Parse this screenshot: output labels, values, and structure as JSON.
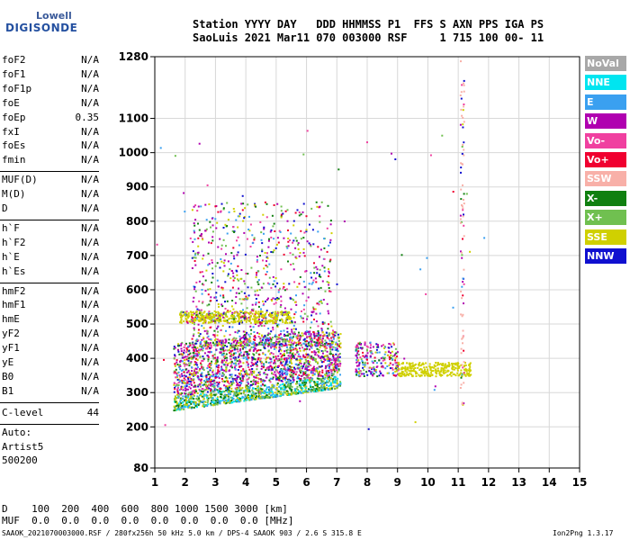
{
  "logo": {
    "line1": "Lowell",
    "line2": "DIGISONDE"
  },
  "header": {
    "line1": "Station YYYY DAY   DDD HHMMSS P1  FFS S AXN PPS IGA PS",
    "line2": "SaoLuis 2021 Mar11 070 003000 RSF     1 715 100 00- 11"
  },
  "params_group1": [
    {
      "name": "foF2",
      "value": "N/A"
    },
    {
      "name": "foF1",
      "value": "N/A"
    },
    {
      "name": "foF1p",
      "value": "N/A"
    },
    {
      "name": "foE",
      "value": "N/A"
    },
    {
      "name": "foEp",
      "value": "0.35"
    },
    {
      "name": "fxI",
      "value": "N/A"
    },
    {
      "name": "foEs",
      "value": "N/A"
    },
    {
      "name": "fmin",
      "value": "N/A"
    }
  ],
  "params_group2": [
    {
      "name": "MUF(D)",
      "value": "N/A"
    },
    {
      "name": "M(D)",
      "value": "N/A"
    },
    {
      "name": "D",
      "value": "N/A"
    }
  ],
  "params_group3": [
    {
      "name": "h`F",
      "value": "N/A"
    },
    {
      "name": "h`F2",
      "value": "N/A"
    },
    {
      "name": "h`E",
      "value": "N/A"
    },
    {
      "name": "h`Es",
      "value": "N/A"
    }
  ],
  "params_group4": [
    {
      "name": "hmF2",
      "value": "N/A"
    },
    {
      "name": "hmF1",
      "value": "N/A"
    },
    {
      "name": "hmE",
      "value": "N/A"
    },
    {
      "name": "yF2",
      "value": "N/A"
    },
    {
      "name": "yF1",
      "value": "N/A"
    },
    {
      "name": "yE",
      "value": "N/A"
    },
    {
      "name": "B0",
      "value": "N/A"
    },
    {
      "name": "B1",
      "value": "N/A"
    }
  ],
  "clevel": {
    "name": "C-level",
    "value": "44"
  },
  "auto": {
    "line1": "Auto:",
    "line2": "Artist5",
    "line3": "500200"
  },
  "footer": {
    "d_row": "D    100  200  400  600  800 1000 1500 3000 [km]",
    "muf_row": "MUF  0.0  0.0  0.0  0.0  0.0  0.0  0.0  0.0 [MHz]",
    "info": "SAAOK_2021070003000.RSF / 280fx256h 50 kHz 5.0 km / DPS-4 SAAOK 903 / 2.6 S 315.8 E",
    "version": "Ion2Png 1.3.17"
  },
  "legend": [
    {
      "label": "NoVal",
      "color": "#a8a8a8"
    },
    {
      "label": "NNE",
      "color": "#00e5f0"
    },
    {
      "label": "E",
      "color": "#3aa0f0"
    },
    {
      "label": "W",
      "color": "#b000b0"
    },
    {
      "label": "Vo-",
      "color": "#f040a0"
    },
    {
      "label": "Vo+",
      "color": "#f00030"
    },
    {
      "label": "SSW",
      "color": "#f8b0a8"
    },
    {
      "label": "X-",
      "color": "#108010"
    },
    {
      "label": "X+",
      "color": "#70c050"
    },
    {
      "label": "SSE",
      "color": "#d0d000"
    },
    {
      "label": "NNW",
      "color": "#1010d0"
    }
  ],
  "chart_data": {
    "type": "scatter",
    "xlim": [
      1,
      15
    ],
    "ylim": [
      80,
      1280
    ],
    "x_ticks": [
      1,
      2,
      3,
      4,
      5,
      6,
      7,
      8,
      9,
      10,
      11,
      12,
      13,
      14,
      15
    ],
    "y_ticks": [
      80,
      200,
      300,
      400,
      500,
      600,
      700,
      800,
      900,
      1000,
      1100,
      1280
    ],
    "grid": true,
    "x_unit": "MHz",
    "y_unit": "km",
    "traces": [
      {
        "name": "F-layer O-trace dense",
        "fmin": 1.6,
        "fmax": 7.1,
        "hmin": 240,
        "hmax": 470,
        "density": "high"
      },
      {
        "name": "F-layer spread echoes",
        "fmin": 2.2,
        "fmax": 6.8,
        "hmin": 450,
        "hmax": 850,
        "density": "low"
      },
      {
        "name": "SSE band ~520 km",
        "fmin": 1.8,
        "fmax": 5.5,
        "hmin": 500,
        "hmax": 540,
        "density": "medium"
      },
      {
        "name": "Upper F echoes",
        "fmin": 7.6,
        "fmax": 11.4,
        "hmin": 330,
        "hmax": 460,
        "density": "medium"
      },
      {
        "name": "Vertical stripe",
        "fmin": 11.0,
        "fmax": 11.2,
        "hmin": 250,
        "hmax": 1280,
        "density": "low"
      }
    ]
  }
}
